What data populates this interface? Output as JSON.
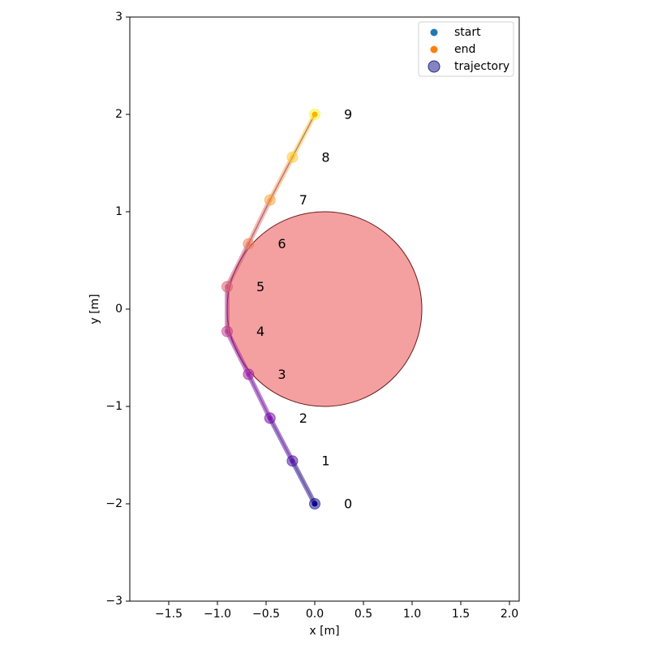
{
  "chart_data": {
    "type": "scatter",
    "xlabel": "x [m]",
    "ylabel": "y [m]",
    "xlim": [
      -1.9,
      2.1
    ],
    "ylim": [
      -3,
      3
    ],
    "x_ticks": [
      -1.5,
      -1.0,
      -0.5,
      0.0,
      0.5,
      1.0,
      1.5,
      2.0
    ],
    "x_tick_labels": [
      "−1.5",
      "−1.0",
      "−0.5",
      "0.0",
      "0.5",
      "1.0",
      "1.5",
      "2.0"
    ],
    "y_ticks": [
      -3,
      -2,
      -1,
      0,
      1,
      2,
      3
    ],
    "y_tick_labels": [
      "−3",
      "−2",
      "−1",
      "0",
      "1",
      "2",
      "3"
    ],
    "grid": false,
    "legend_position": "top-right",
    "legend": [
      {
        "label": "start",
        "color": "#1f77b4",
        "marker": "dot"
      },
      {
        "label": "end",
        "color": "#ff7f0e",
        "marker": "dot"
      },
      {
        "label": "trajectory",
        "color": "#5b5bb0",
        "marker": "circle"
      }
    ],
    "obstacle": {
      "center": [
        0.1,
        0.0
      ],
      "radius": 1.0,
      "fill": "#f08080",
      "edge": "#6b1a1a"
    },
    "trajectory": {
      "points": [
        {
          "x": 0.0,
          "y": -2.0,
          "label": "0"
        },
        {
          "x": -0.23,
          "y": -1.56,
          "label": "1"
        },
        {
          "x": -0.46,
          "y": -1.12,
          "label": "2"
        },
        {
          "x": -0.68,
          "y": -0.67,
          "label": "3"
        },
        {
          "x": -0.9,
          "y": -0.23,
          "label": "4"
        },
        {
          "x": -0.9,
          "y": 0.23,
          "label": "5"
        },
        {
          "x": -0.68,
          "y": 0.67,
          "label": "6"
        },
        {
          "x": -0.46,
          "y": 1.12,
          "label": "7"
        },
        {
          "x": -0.23,
          "y": 1.56,
          "label": "8"
        },
        {
          "x": 0.0,
          "y": 2.0,
          "label": "9"
        }
      ],
      "colors": [
        "#0d0887",
        "#46039f",
        "#7201a8",
        "#9c179e",
        "#bd3786",
        "#d8576b",
        "#ed7953",
        "#fb9f3a",
        "#fdca26",
        "#f0f921"
      ]
    },
    "start": {
      "x": 0.0,
      "y": -2.0
    },
    "end": {
      "x": 0.0,
      "y": 2.0
    }
  }
}
